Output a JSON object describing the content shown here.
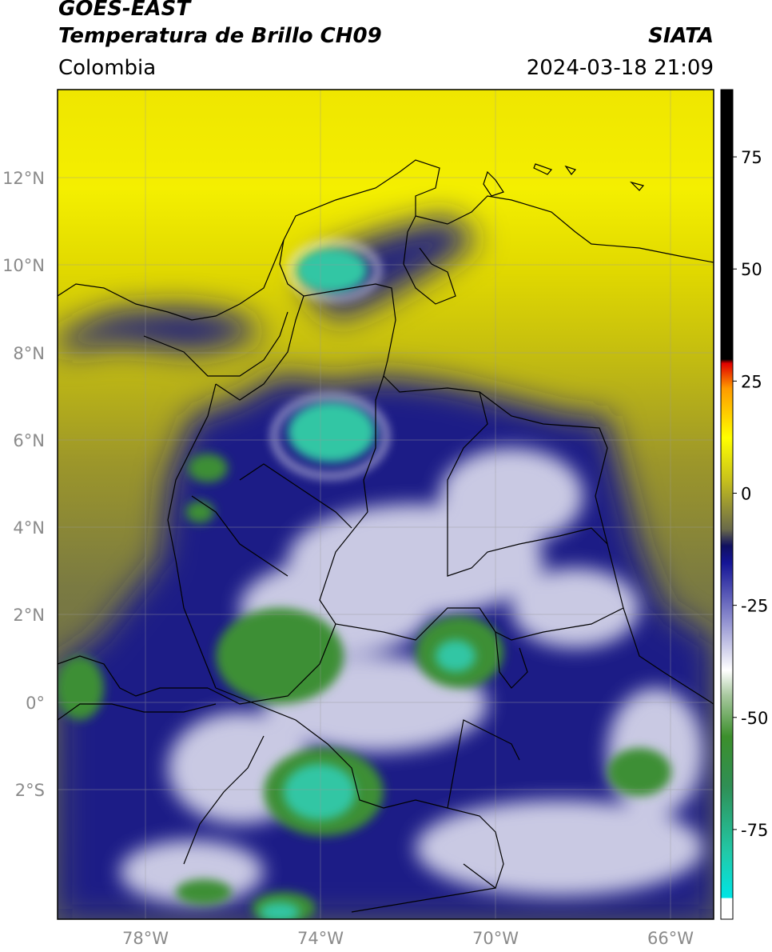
{
  "header": {
    "satellite": "GOES-EAST",
    "product": "Temperatura de Brillo CH09",
    "region": "Colombia",
    "source": "SIATA",
    "datetime": "2024-03-18 21:09"
  },
  "map": {
    "lat_ticks": [
      "12°N",
      "10°N",
      "8°N",
      "6°N",
      "4°N",
      "2°N",
      "0°",
      "2°S"
    ],
    "lon_ticks": [
      "78°W",
      "74°W",
      "70°W",
      "66°W"
    ],
    "extent": {
      "lon_min": -80.0,
      "lon_max": -65.0,
      "lat_min": -4.5,
      "lat_max": 14.0
    }
  },
  "colorbar": {
    "ticks": [
      "75",
      "50",
      "25",
      "0",
      "-25",
      "-50",
      "-75"
    ],
    "range": [
      -95,
      90
    ]
  },
  "colors": {
    "warm_yellow": "#f2ef00",
    "olive": "#8f8a2a",
    "navy": "#1a1a8c",
    "white": "#f2f2f2",
    "green": "#3a8f3a",
    "teal": "#2fd4b0"
  }
}
